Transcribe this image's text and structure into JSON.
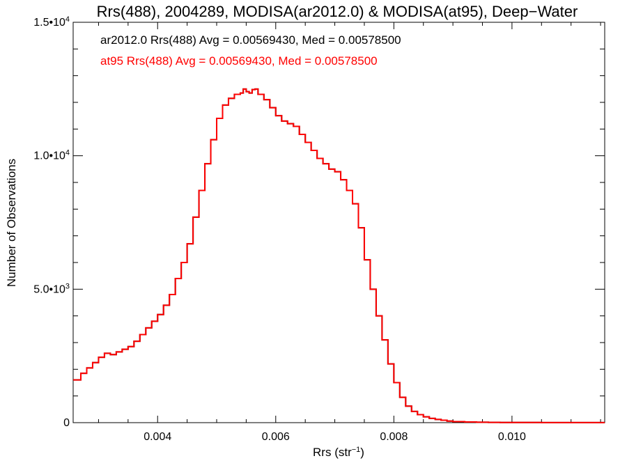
{
  "chart_data": {
    "type": "line",
    "step": true,
    "title": "Rrs(488), 2004289, MODISA(ar2012.0) & MODISA(at95), Deep−Water",
    "xlabel": "Rrs (str",
    "xlabel_sup": "−1",
    "xlabel_suffix": ")",
    "ylabel": "Number of Observations",
    "xlim": [
      0.00257,
      0.01157
    ],
    "ylim": [
      0,
      15000
    ],
    "xticks": [
      {
        "value": 0.004,
        "label": "0.004"
      },
      {
        "value": 0.006,
        "label": "0.006"
      },
      {
        "value": 0.008,
        "label": "0.008"
      },
      {
        "value": 0.01,
        "label": "0.010"
      }
    ],
    "yticks": [
      {
        "value": 0,
        "base": "0",
        "sup": ""
      },
      {
        "value": 5000,
        "base": "5.0•10",
        "sup": "3"
      },
      {
        "value": 10000,
        "base": "1.0•10",
        "sup": "4"
      },
      {
        "value": 15000,
        "base": "1.5•10",
        "sup": "4"
      }
    ],
    "annotations": [
      {
        "text": "ar2012.0 Rrs(488) Avg = 0.00569430, Med = 0.00578500",
        "color": "#000000"
      },
      {
        "text": "at95 Rrs(488) Avg = 0.00569430, Med = 0.00578500",
        "color": "#ff0000"
      }
    ],
    "series": [
      {
        "color": "#000000",
        "x": [
          0.00257,
          0.0027,
          0.0028,
          0.0029,
          0.003,
          0.0031,
          0.0032,
          0.0033,
          0.0034,
          0.0035,
          0.0036,
          0.0037,
          0.0038,
          0.0039,
          0.004,
          0.0041,
          0.0042,
          0.0043,
          0.0044,
          0.0045,
          0.0046,
          0.0047,
          0.0048,
          0.0049,
          0.005,
          0.0051,
          0.0052,
          0.0053,
          0.0054,
          0.00545,
          0.0055,
          0.00555,
          0.0056,
          0.00565,
          0.0057,
          0.0058,
          0.0059,
          0.006,
          0.0061,
          0.0062,
          0.0063,
          0.0064,
          0.0065,
          0.0066,
          0.0067,
          0.0068,
          0.0069,
          0.007,
          0.0071,
          0.0072,
          0.0073,
          0.0074,
          0.0075,
          0.0076,
          0.0077,
          0.0078,
          0.0079,
          0.008,
          0.0081,
          0.0082,
          0.0083,
          0.0084,
          0.0085,
          0.0086,
          0.0087,
          0.0088,
          0.0089,
          0.009,
          0.0092,
          0.0094,
          0.0096,
          0.0098,
          0.01,
          0.0105,
          0.011,
          0.01157
        ],
        "y": [
          1600,
          1850,
          2050,
          2250,
          2450,
          2600,
          2550,
          2650,
          2750,
          2850,
          3050,
          3300,
          3550,
          3800,
          4050,
          4400,
          4800,
          5400,
          6000,
          6700,
          7700,
          8700,
          9700,
          10600,
          11400,
          11900,
          12150,
          12300,
          12350,
          12500,
          12400,
          12350,
          12480,
          12500,
          12300,
          12100,
          11800,
          11500,
          11300,
          11200,
          11100,
          10800,
          10500,
          10200,
          9900,
          9700,
          9500,
          9400,
          9100,
          8700,
          8200,
          7300,
          6100,
          5000,
          4000,
          3100,
          2200,
          1500,
          950,
          620,
          420,
          300,
          220,
          160,
          120,
          90,
          60,
          40,
          25,
          15,
          10,
          8,
          5,
          3,
          2,
          2
        ]
      },
      {
        "color": "#ff0000",
        "x": [
          0.00257,
          0.0027,
          0.0028,
          0.0029,
          0.003,
          0.0031,
          0.0032,
          0.0033,
          0.0034,
          0.0035,
          0.0036,
          0.0037,
          0.0038,
          0.0039,
          0.004,
          0.0041,
          0.0042,
          0.0043,
          0.0044,
          0.0045,
          0.0046,
          0.0047,
          0.0048,
          0.0049,
          0.005,
          0.0051,
          0.0052,
          0.0053,
          0.0054,
          0.00545,
          0.0055,
          0.00555,
          0.0056,
          0.00565,
          0.0057,
          0.0058,
          0.0059,
          0.006,
          0.0061,
          0.0062,
          0.0063,
          0.0064,
          0.0065,
          0.0066,
          0.0067,
          0.0068,
          0.0069,
          0.007,
          0.0071,
          0.0072,
          0.0073,
          0.0074,
          0.0075,
          0.0076,
          0.0077,
          0.0078,
          0.0079,
          0.008,
          0.0081,
          0.0082,
          0.0083,
          0.0084,
          0.0085,
          0.0086,
          0.0087,
          0.0088,
          0.0089,
          0.009,
          0.0092,
          0.0094,
          0.0096,
          0.0098,
          0.01,
          0.0105,
          0.011,
          0.01157
        ],
        "y": [
          1600,
          1850,
          2050,
          2250,
          2450,
          2600,
          2550,
          2650,
          2750,
          2850,
          3050,
          3300,
          3550,
          3800,
          4050,
          4400,
          4800,
          5400,
          6000,
          6700,
          7700,
          8700,
          9700,
          10600,
          11400,
          11900,
          12150,
          12300,
          12350,
          12500,
          12400,
          12350,
          12480,
          12500,
          12300,
          12100,
          11800,
          11500,
          11300,
          11200,
          11100,
          10800,
          10500,
          10200,
          9900,
          9700,
          9500,
          9400,
          9100,
          8700,
          8200,
          7300,
          6100,
          5000,
          4000,
          3100,
          2200,
          1500,
          950,
          620,
          420,
          300,
          220,
          160,
          120,
          90,
          60,
          40,
          25,
          15,
          10,
          8,
          5,
          3,
          2,
          2
        ]
      }
    ],
    "grid": false
  }
}
